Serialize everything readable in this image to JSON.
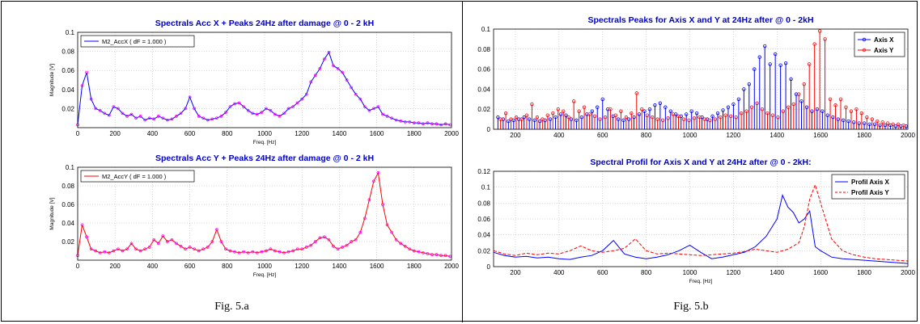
{
  "figures": [
    {
      "caption": "Fig. 5.a",
      "panels": [
        {
          "title": "Spectrals Acc X + Peaks 24Hz after damage @ 0 - 2 kH",
          "xlabel": "Freq. [Hz]",
          "ylabel": "Magnitude [V]",
          "legend": [
            "M2_AccX ( dF = 1.000 )"
          ]
        },
        {
          "title": "Spectrals Acc Y + Peaks 24Hz after damage @ 0 - 2 kH",
          "xlabel": "Freq. [Hz]",
          "ylabel": "Magnitude [V]",
          "legend": [
            "M2_AccY ( dF = 1.000 )"
          ]
        }
      ]
    },
    {
      "caption": "Fig. 5.b",
      "panels": [
        {
          "title": "Spectrals Peaks for Axis X and Y at 24Hz after @ 0 - 2kH",
          "xlabel": "",
          "ylabel": "",
          "legend": [
            "Axis X",
            "Axis Y"
          ]
        },
        {
          "title": "Spectral Profil  for Axis X and Y at 24Hz  after @ 0 - 2kH:",
          "xlabel": "Freq. [Hz]",
          "ylabel": "",
          "legend": [
            "Profil Axis X",
            "Profil Axis Y"
          ]
        }
      ]
    }
  ],
  "chart_data": [
    {
      "type": "line",
      "title": "Spectrals Acc X + Peaks 24Hz after damage @ 0 - 2 kH",
      "xlabel": "Freq. [Hz]",
      "ylabel": "Magnitude [V]",
      "xlim": [
        0,
        2000
      ],
      "ylim": [
        0,
        0.1
      ],
      "xticks": [
        0,
        200,
        400,
        600,
        800,
        1000,
        1200,
        1400,
        1600,
        1800,
        2000
      ],
      "yticks": [
        0.02,
        0.04,
        0.06,
        0.08,
        0.1
      ],
      "grid": true,
      "legend_position": "top-left",
      "series": [
        {
          "name": "M2_AccX ( dF = 1.000 )",
          "color": "#0000ff",
          "x": [
            0,
            24,
            48,
            72,
            96,
            120,
            144,
            168,
            192,
            216,
            240,
            264,
            288,
            312,
            336,
            360,
            384,
            408,
            432,
            456,
            480,
            504,
            528,
            552,
            576,
            600,
            624,
            648,
            672,
            696,
            720,
            744,
            768,
            792,
            816,
            840,
            864,
            888,
            912,
            936,
            960,
            984,
            1008,
            1032,
            1056,
            1080,
            1104,
            1128,
            1152,
            1176,
            1200,
            1224,
            1248,
            1272,
            1296,
            1320,
            1344,
            1368,
            1392,
            1416,
            1440,
            1464,
            1488,
            1512,
            1536,
            1560,
            1584,
            1608,
            1632,
            1656,
            1680,
            1704,
            1728,
            1752,
            1776,
            1800,
            1824,
            1848,
            1872,
            1896,
            1920,
            1944,
            1968,
            1992
          ],
          "values": [
            0.003,
            0.044,
            0.058,
            0.03,
            0.02,
            0.018,
            0.015,
            0.013,
            0.022,
            0.02,
            0.015,
            0.012,
            0.014,
            0.01,
            0.012,
            0.008,
            0.01,
            0.009,
            0.012,
            0.01,
            0.008,
            0.009,
            0.012,
            0.015,
            0.02,
            0.032,
            0.02,
            0.012,
            0.01,
            0.008,
            0.009,
            0.01,
            0.012,
            0.016,
            0.022,
            0.025,
            0.026,
            0.022,
            0.018,
            0.015,
            0.014,
            0.016,
            0.02,
            0.018,
            0.014,
            0.012,
            0.015,
            0.02,
            0.022,
            0.026,
            0.03,
            0.035,
            0.048,
            0.055,
            0.062,
            0.072,
            0.079,
            0.065,
            0.062,
            0.058,
            0.05,
            0.042,
            0.035,
            0.03,
            0.022,
            0.018,
            0.02,
            0.022,
            0.014,
            0.012,
            0.01,
            0.008,
            0.007,
            0.006,
            0.006,
            0.005,
            0.005,
            0.004,
            0.005,
            0.004,
            0.004,
            0.003,
            0.004,
            0.003
          ]
        }
      ]
    },
    {
      "type": "line",
      "title": "Spectrals Acc Y + Peaks 24Hz after damage @ 0 - 2 kH",
      "xlabel": "Freq. [Hz]",
      "ylabel": "Magnitude [V]",
      "xlim": [
        0,
        2000
      ],
      "ylim": [
        0,
        0.1
      ],
      "xticks": [
        0,
        200,
        400,
        600,
        800,
        1000,
        1200,
        1400,
        1600,
        1800,
        2000
      ],
      "yticks": [
        0.02,
        0.04,
        0.06,
        0.08,
        0.1
      ],
      "grid": true,
      "legend_position": "top-left",
      "series": [
        {
          "name": "M2_AccY ( dF = 1.000 )",
          "color": "#ff0000",
          "x": [
            0,
            24,
            48,
            72,
            96,
            120,
            144,
            168,
            192,
            216,
            240,
            264,
            288,
            312,
            336,
            360,
            384,
            408,
            432,
            456,
            480,
            504,
            528,
            552,
            576,
            600,
            624,
            648,
            672,
            696,
            720,
            744,
            768,
            792,
            816,
            840,
            864,
            888,
            912,
            936,
            960,
            984,
            1008,
            1032,
            1056,
            1080,
            1104,
            1128,
            1152,
            1176,
            1200,
            1224,
            1248,
            1272,
            1296,
            1320,
            1344,
            1368,
            1392,
            1416,
            1440,
            1464,
            1488,
            1512,
            1536,
            1560,
            1584,
            1608,
            1632,
            1656,
            1680,
            1704,
            1728,
            1752,
            1776,
            1800,
            1824,
            1848,
            1872,
            1896,
            1920,
            1944,
            1968,
            1992
          ],
          "values": [
            0.005,
            0.038,
            0.025,
            0.012,
            0.01,
            0.008,
            0.009,
            0.008,
            0.01,
            0.012,
            0.01,
            0.012,
            0.018,
            0.012,
            0.01,
            0.012,
            0.014,
            0.022,
            0.018,
            0.026,
            0.02,
            0.022,
            0.018,
            0.015,
            0.012,
            0.014,
            0.012,
            0.01,
            0.012,
            0.014,
            0.02,
            0.033,
            0.02,
            0.012,
            0.01,
            0.009,
            0.008,
            0.009,
            0.008,
            0.009,
            0.008,
            0.009,
            0.01,
            0.012,
            0.01,
            0.009,
            0.008,
            0.009,
            0.01,
            0.012,
            0.012,
            0.014,
            0.016,
            0.02,
            0.024,
            0.025,
            0.022,
            0.015,
            0.012,
            0.014,
            0.016,
            0.02,
            0.022,
            0.03,
            0.045,
            0.065,
            0.085,
            0.094,
            0.06,
            0.038,
            0.03,
            0.022,
            0.018,
            0.015,
            0.012,
            0.01,
            0.009,
            0.008,
            0.007,
            0.006,
            0.006,
            0.005,
            0.005,
            0.004
          ]
        }
      ]
    },
    {
      "type": "scatter",
      "title": "Spectrals Peaks for Axis X and Y at 24Hz after @ 0 - 2kH",
      "xlim": [
        100,
        2000
      ],
      "ylim": [
        0,
        0.1
      ],
      "xticks": [
        200,
        400,
        600,
        800,
        1000,
        1200,
        1400,
        1600,
        1800,
        2000
      ],
      "yticks": [
        0,
        0.02,
        0.04,
        0.06,
        0.08,
        0.1
      ],
      "grid": true,
      "legend_position": "top-right",
      "series": [
        {
          "name": "Axis X",
          "color": "#0000ff",
          "x": [
            120,
            144,
            168,
            192,
            216,
            240,
            264,
            288,
            312,
            336,
            360,
            384,
            408,
            432,
            456,
            480,
            504,
            528,
            552,
            576,
            600,
            624,
            648,
            672,
            696,
            720,
            744,
            768,
            792,
            816,
            840,
            864,
            888,
            912,
            936,
            960,
            984,
            1008,
            1032,
            1056,
            1080,
            1104,
            1128,
            1152,
            1176,
            1200,
            1224,
            1248,
            1272,
            1296,
            1320,
            1344,
            1368,
            1392,
            1416,
            1440,
            1464,
            1488,
            1512,
            1536,
            1560,
            1584,
            1608,
            1632,
            1656,
            1680,
            1704,
            1728,
            1752,
            1776,
            1800,
            1824,
            1848,
            1872,
            1896,
            1920,
            1944,
            1968,
            1992
          ],
          "values": [
            0.012,
            0.01,
            0.008,
            0.009,
            0.01,
            0.012,
            0.01,
            0.009,
            0.008,
            0.009,
            0.01,
            0.012,
            0.015,
            0.014,
            0.01,
            0.009,
            0.012,
            0.015,
            0.018,
            0.022,
            0.03,
            0.02,
            0.013,
            0.01,
            0.009,
            0.01,
            0.012,
            0.015,
            0.018,
            0.02,
            0.024,
            0.026,
            0.022,
            0.018,
            0.015,
            0.013,
            0.015,
            0.018,
            0.016,
            0.012,
            0.01,
            0.013,
            0.016,
            0.019,
            0.022,
            0.025,
            0.03,
            0.04,
            0.045,
            0.06,
            0.072,
            0.083,
            0.065,
            0.075,
            0.064,
            0.066,
            0.05,
            0.035,
            0.028,
            0.022,
            0.018,
            0.02,
            0.018,
            0.014,
            0.012,
            0.01,
            0.009,
            0.008,
            0.007,
            0.006,
            0.006,
            0.005,
            0.005,
            0.004,
            0.004,
            0.004,
            0.003,
            0.003,
            0.003
          ]
        },
        {
          "name": "Axis Y",
          "color": "#ff0000",
          "x": [
            132,
            156,
            180,
            204,
            228,
            252,
            276,
            300,
            324,
            348,
            372,
            396,
            420,
            444,
            468,
            492,
            516,
            540,
            564,
            588,
            612,
            636,
            660,
            684,
            708,
            732,
            756,
            780,
            804,
            828,
            852,
            876,
            900,
            924,
            948,
            972,
            996,
            1020,
            1044,
            1068,
            1092,
            1116,
            1140,
            1164,
            1188,
            1212,
            1236,
            1260,
            1284,
            1308,
            1332,
            1356,
            1380,
            1404,
            1428,
            1452,
            1476,
            1500,
            1524,
            1548,
            1572,
            1596,
            1620,
            1644,
            1668,
            1692,
            1716,
            1740,
            1764,
            1788,
            1812,
            1836,
            1860,
            1884,
            1908,
            1932,
            1956,
            1980
          ],
          "values": [
            0.01,
            0.016,
            0.01,
            0.012,
            0.01,
            0.014,
            0.025,
            0.012,
            0.01,
            0.014,
            0.016,
            0.02,
            0.018,
            0.012,
            0.028,
            0.018,
            0.022,
            0.015,
            0.013,
            0.01,
            0.012,
            0.02,
            0.014,
            0.018,
            0.012,
            0.016,
            0.036,
            0.02,
            0.014,
            0.012,
            0.01,
            0.009,
            0.011,
            0.015,
            0.013,
            0.01,
            0.009,
            0.011,
            0.012,
            0.01,
            0.009,
            0.01,
            0.012,
            0.014,
            0.013,
            0.012,
            0.016,
            0.018,
            0.022,
            0.026,
            0.02,
            0.016,
            0.014,
            0.012,
            0.018,
            0.022,
            0.025,
            0.035,
            0.045,
            0.065,
            0.085,
            0.098,
            0.09,
            0.03,
            0.024,
            0.03,
            0.022,
            0.018,
            0.02,
            0.016,
            0.012,
            0.01,
            0.008,
            0.007,
            0.006,
            0.005,
            0.005,
            0.004
          ]
        }
      ]
    },
    {
      "type": "line",
      "title": "Spectral Profil  for Axis X and Y at 24Hz  after @ 0 - 2kH:",
      "xlabel": "Freq. [Hz]",
      "xlim": [
        100,
        2000
      ],
      "ylim": [
        0,
        0.12
      ],
      "xticks": [
        200,
        400,
        600,
        800,
        1000,
        1200,
        1400,
        1600,
        1800,
        2000
      ],
      "yticks": [
        0,
        0.02,
        0.04,
        0.06,
        0.08,
        0.1,
        0.12
      ],
      "grid": true,
      "legend_position": "top-right",
      "series": [
        {
          "name": "Profil Axis X",
          "color": "#0000ff",
          "style": "solid",
          "x": [
            100,
            150,
            200,
            250,
            300,
            350,
            400,
            450,
            500,
            550,
            600,
            650,
            700,
            750,
            800,
            850,
            900,
            950,
            1000,
            1050,
            1100,
            1150,
            1200,
            1250,
            1300,
            1350,
            1400,
            1425,
            1450,
            1475,
            1500,
            1525,
            1550,
            1575,
            1600,
            1650,
            1700,
            1750,
            1800,
            1850,
            1900,
            1950,
            2000
          ],
          "values": [
            0.018,
            0.014,
            0.012,
            0.013,
            0.011,
            0.012,
            0.01,
            0.009,
            0.012,
            0.014,
            0.02,
            0.033,
            0.016,
            0.012,
            0.01,
            0.012,
            0.015,
            0.02,
            0.027,
            0.018,
            0.01,
            0.012,
            0.015,
            0.018,
            0.025,
            0.038,
            0.06,
            0.09,
            0.075,
            0.068,
            0.055,
            0.06,
            0.07,
            0.025,
            0.02,
            0.012,
            0.01,
            0.009,
            0.008,
            0.007,
            0.006,
            0.005,
            0.004
          ]
        },
        {
          "name": "Profil Axis Y",
          "color": "#ff0000",
          "style": "dashed",
          "x": [
            100,
            150,
            200,
            250,
            300,
            350,
            400,
            450,
            500,
            550,
            600,
            650,
            700,
            750,
            800,
            850,
            900,
            950,
            1000,
            1050,
            1100,
            1150,
            1200,
            1250,
            1300,
            1350,
            1400,
            1450,
            1500,
            1525,
            1550,
            1575,
            1600,
            1650,
            1700,
            1750,
            1800,
            1850,
            1900,
            1950,
            2000
          ],
          "values": [
            0.02,
            0.016,
            0.014,
            0.017,
            0.015,
            0.017,
            0.016,
            0.02,
            0.026,
            0.02,
            0.018,
            0.02,
            0.023,
            0.035,
            0.02,
            0.016,
            0.017,
            0.016,
            0.015,
            0.014,
            0.015,
            0.016,
            0.017,
            0.019,
            0.022,
            0.02,
            0.018,
            0.022,
            0.03,
            0.05,
            0.085,
            0.103,
            0.08,
            0.035,
            0.02,
            0.015,
            0.012,
            0.01,
            0.009,
            0.008,
            0.007
          ]
        }
      ]
    }
  ]
}
